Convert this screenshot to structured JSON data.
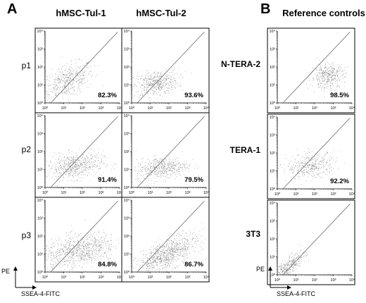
{
  "panels": {
    "a": "A",
    "b": "B"
  },
  "columns": {
    "tul1": "hMSC-Tul-1",
    "tul2": "hMSC-Tul-2",
    "ref": "Reference controls"
  },
  "rows": {
    "p1": "p1",
    "p2": "p2",
    "p3": "p3"
  },
  "refs": {
    "ntera2": "N-TERA-2",
    "tera1": "TERA-1",
    "t3": "3T3"
  },
  "axes": {
    "y": "PE",
    "x": "SSEA-4-FITC"
  },
  "chart_data": [
    {
      "type": "scatter",
      "row": "p1",
      "column": "hMSC-Tul-1",
      "percent_label": "82.3%",
      "xlim": [
        1,
        10000
      ],
      "ylim": [
        1,
        10000
      ],
      "log_scale": true
    },
    {
      "type": "scatter",
      "row": "p1",
      "column": "hMSC-Tul-2",
      "percent_label": "93.6%",
      "xlim": [
        1,
        10000
      ],
      "ylim": [
        1,
        10000
      ],
      "log_scale": true
    },
    {
      "type": "scatter",
      "row": "p2",
      "column": "hMSC-Tul-1",
      "percent_label": "91.4%",
      "xlim": [
        1,
        10000
      ],
      "ylim": [
        1,
        10000
      ],
      "log_scale": true
    },
    {
      "type": "scatter",
      "row": "p2",
      "column": "hMSC-Tul-2",
      "percent_label": "79.5%",
      "xlim": [
        1,
        10000
      ],
      "ylim": [
        1,
        10000
      ],
      "log_scale": true
    },
    {
      "type": "scatter",
      "row": "p3",
      "column": "hMSC-Tul-1",
      "percent_label": "84.8%",
      "xlim": [
        1,
        10000
      ],
      "ylim": [
        1,
        10000
      ],
      "log_scale": true
    },
    {
      "type": "scatter",
      "row": "p3",
      "column": "hMSC-Tul-2",
      "percent_label": "86.7%",
      "xlim": [
        1,
        10000
      ],
      "ylim": [
        1,
        10000
      ],
      "log_scale": true
    },
    {
      "type": "scatter",
      "row": "N-TERA-2",
      "column": "Reference controls",
      "percent_label": "98.5%",
      "xlim": [
        1,
        10000
      ],
      "ylim": [
        1,
        10000
      ],
      "log_scale": true
    },
    {
      "type": "scatter",
      "row": "TERA-1",
      "column": "Reference controls",
      "percent_label": "92.2%",
      "xlim": [
        1,
        10000
      ],
      "ylim": [
        1,
        10000
      ],
      "log_scale": true
    },
    {
      "type": "scatter",
      "row": "3T3",
      "column": "Reference controls",
      "percent_label": "",
      "xlim": [
        1,
        10000
      ],
      "ylim": [
        1,
        10000
      ],
      "log_scale": true
    }
  ],
  "tick_labels": [
    "10⁰",
    "10¹",
    "10²",
    "10³",
    "10⁴"
  ],
  "colors": {
    "dots": "#3a3a3a",
    "frame": "#000000",
    "gate": "#7a7a7a"
  }
}
